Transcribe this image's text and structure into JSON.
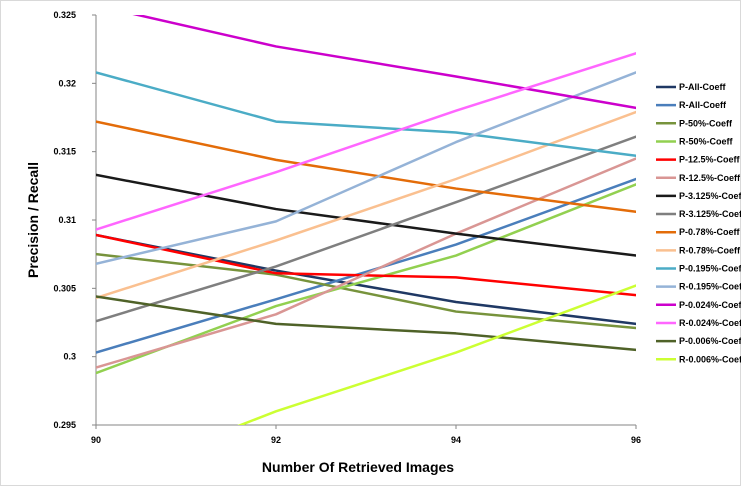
{
  "chart_data": {
    "type": "line",
    "xlabel": "Number Of Retrieved Images",
    "ylabel": "Precision / Recall",
    "x": [
      90,
      92,
      94,
      96
    ],
    "xticks": [
      "90",
      "92",
      "94",
      "96"
    ],
    "ylim": [
      0.295,
      0.325
    ],
    "yticks": [
      "0.295",
      "0.3",
      "0.305",
      "0.31",
      "0.315",
      "0.32",
      "0.325"
    ],
    "grid": false,
    "legend_position": "right",
    "series": [
      {
        "name": "P-All-Coeff",
        "color": "#1f3864",
        "values": [
          0.3089,
          0.3063,
          0.304,
          0.3024
        ]
      },
      {
        "name": "R-All-Coeff",
        "color": "#4a7ebb",
        "values": [
          0.3003,
          0.3042,
          0.3082,
          0.313
        ]
      },
      {
        "name": "P-50%-Coeff",
        "color": "#77933c",
        "values": [
          0.3075,
          0.306,
          0.3033,
          0.3021
        ]
      },
      {
        "name": "R-50%-Coeff",
        "color": "#92d050",
        "values": [
          0.2988,
          0.3037,
          0.3074,
          0.3126
        ]
      },
      {
        "name": "P-12.5%-Coeff",
        "color": "#ff0000",
        "values": [
          0.3089,
          0.3061,
          0.3058,
          0.3045
        ]
      },
      {
        "name": "R-12.5%-Coeff",
        "color": "#d99694",
        "values": [
          0.2992,
          0.3031,
          0.309,
          0.3145
        ]
      },
      {
        "name": "P-3.125%-Coeff",
        "color": "#1a1a1a",
        "values": [
          0.3133,
          0.3108,
          0.309,
          0.3074
        ]
      },
      {
        "name": "R-3.125%-Coeff",
        "color": "#7f7f7f",
        "values": [
          0.3026,
          0.3066,
          0.3113,
          0.3161
        ]
      },
      {
        "name": "P-0.78%-Coeff",
        "color": "#e36c09",
        "values": [
          0.3172,
          0.3144,
          0.3123,
          0.3106
        ]
      },
      {
        "name": "R-0.78%-Coeff",
        "color": "#fac090",
        "values": [
          0.3043,
          0.3085,
          0.313,
          0.3179
        ]
      },
      {
        "name": "P-0.195%-Coeff",
        "color": "#4bacc6",
        "values": [
          0.3208,
          0.3172,
          0.3164,
          0.3147
        ]
      },
      {
        "name": "R-0.195%-Coeff",
        "color": "#95b3d7",
        "values": [
          0.3068,
          0.3099,
          0.3157,
          0.3208
        ]
      },
      {
        "name": "P-0.024%-Coeff",
        "color": "#cc00cc",
        "values": [
          0.3257,
          0.3227,
          0.3205,
          0.3182
        ]
      },
      {
        "name": "R-0.024%-Coeff",
        "color": "#ff66ff",
        "values": [
          0.3093,
          0.3135,
          0.318,
          0.3222
        ]
      },
      {
        "name": "P-0.006%-Coeff",
        "color": "#4f6228",
        "values": [
          0.3044,
          0.3024,
          0.3017,
          0.3005
        ]
      },
      {
        "name": "R-0.006%-Coeff",
        "color": "#ccff33",
        "values": [
          0.2909,
          0.296,
          0.3003,
          0.3052
        ]
      }
    ]
  }
}
